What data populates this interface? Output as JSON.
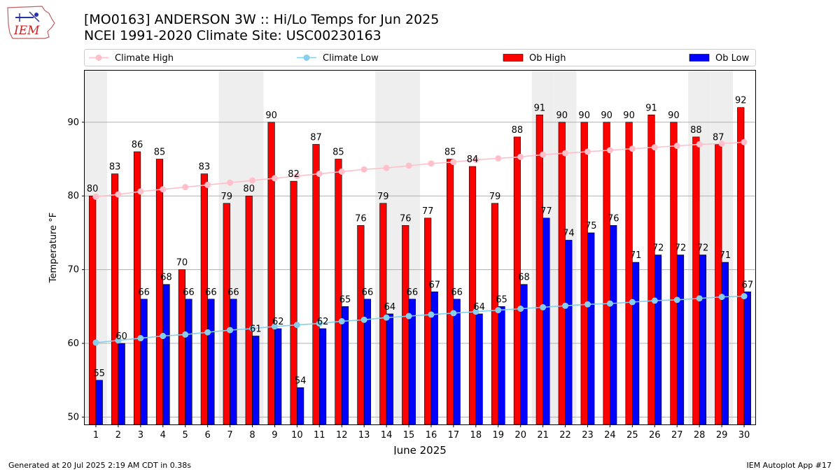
{
  "logo": {
    "text": "IEM"
  },
  "title_lines": [
    "[MO0163] ANDERSON 3W :: Hi/Lo Temps for Jun 2025",
    "NCEI 1991-2020 Climate Site: USC00230163"
  ],
  "footer": {
    "left": "Generated at 20 Jul 2025 2:19 AM CDT in 0.38s",
    "right": "IEM Autoplot App #17"
  },
  "colors": {
    "ob_high": "#ff0000",
    "ob_low": "#0000ff",
    "climate_high": "#ffc0cb",
    "climate_low": "#87ceeb",
    "weekend_band": "#eeeeee",
    "grid": "#b0b0b0"
  },
  "chart_data": {
    "type": "bar",
    "xlabel": "June 2025",
    "ylabel": "Temperature °F",
    "ylim": [
      49,
      97
    ],
    "yticks": [
      50,
      60,
      70,
      80,
      90
    ],
    "grid": "horizontal",
    "legend_placement": "top",
    "legend": [
      "Climate High",
      "Climate Low",
      "Ob High",
      "Ob Low"
    ],
    "shaded_days": [
      1,
      7,
      8,
      14,
      15,
      21,
      22,
      28,
      29
    ],
    "categories": [
      1,
      2,
      3,
      4,
      5,
      6,
      7,
      8,
      9,
      10,
      11,
      12,
      13,
      14,
      15,
      16,
      17,
      18,
      19,
      20,
      21,
      22,
      23,
      24,
      25,
      26,
      27,
      28,
      29,
      30
    ],
    "series": [
      {
        "name": "Ob High",
        "kind": "bar",
        "values": [
          80,
          83,
          86,
          85,
          70,
          83,
          79,
          80,
          90,
          82,
          87,
          85,
          76,
          79,
          76,
          77,
          85,
          84,
          79,
          88,
          91,
          90,
          90,
          90,
          90,
          91,
          90,
          88,
          87,
          92
        ]
      },
      {
        "name": "Ob Low",
        "kind": "bar",
        "values": [
          55,
          60,
          66,
          68,
          66,
          66,
          66,
          61,
          62,
          54,
          62,
          65,
          66,
          64,
          66,
          67,
          66,
          64,
          65,
          68,
          77,
          74,
          75,
          76,
          71,
          72,
          72,
          72,
          71,
          67
        ]
      },
      {
        "name": "Climate High",
        "kind": "line",
        "values": [
          79.9,
          80.2,
          80.6,
          80.9,
          81.2,
          81.5,
          81.8,
          82.1,
          82.4,
          82.7,
          83.0,
          83.3,
          83.6,
          83.8,
          84.1,
          84.4,
          84.6,
          84.9,
          85.1,
          85.3,
          85.6,
          85.8,
          86.0,
          86.2,
          86.4,
          86.6,
          86.8,
          87.0,
          87.1,
          87.3
        ]
      },
      {
        "name": "Climate Low",
        "kind": "line",
        "values": [
          60.1,
          60.4,
          60.7,
          61.0,
          61.2,
          61.5,
          61.8,
          62.0,
          62.3,
          62.5,
          62.7,
          63.0,
          63.2,
          63.5,
          63.7,
          63.9,
          64.1,
          64.3,
          64.5,
          64.7,
          64.9,
          65.1,
          65.3,
          65.4,
          65.6,
          65.8,
          65.9,
          66.1,
          66.3,
          66.4
        ]
      }
    ]
  }
}
